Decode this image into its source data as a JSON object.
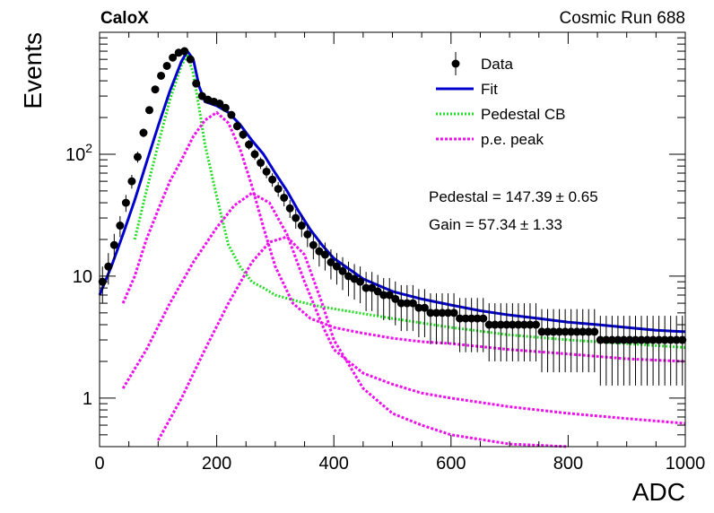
{
  "header": {
    "experiment": "CaloX",
    "run": "Cosmic Run 688"
  },
  "legend": {
    "items": [
      {
        "label": "Data",
        "kind": "marker"
      },
      {
        "label": "Fit",
        "kind": "solid"
      },
      {
        "label": "Pedestal CB",
        "kind": "dotted-green"
      },
      {
        "label": "p.e. peak",
        "kind": "dotted-magenta"
      }
    ]
  },
  "fit_results": {
    "pedestal_text": "Pedestal = 147.39",
    "pedestal_err": "± 0.65",
    "gain_text": "Gain = 57.34",
    "gain_err": "± 1.33"
  },
  "chart_data": {
    "type": "scatter",
    "xlabel": "ADC",
    "ylabel": "Events",
    "xlim": [
      0,
      1000
    ],
    "ylim": [
      0.4,
      1000
    ],
    "ylog": true,
    "grid": false,
    "legend_placement": "top-right",
    "x_ticks": [
      0,
      200,
      400,
      600,
      800,
      1000
    ],
    "x_tick_labels": [
      "0",
      "200",
      "400",
      "600",
      "800",
      "1000"
    ],
    "y_ticks": [
      1,
      10,
      100
    ],
    "y_tick_labels": [
      "1",
      "10",
      "10^2"
    ],
    "colors": {
      "data": "#000000",
      "fit": "#0000cc",
      "pedestal": "#22dd22",
      "pe": "#ee11ee"
    },
    "fit_params": {
      "pedestal": 147.39,
      "pedestal_err": 0.65,
      "gain": 57.34,
      "gain_err": 1.33
    },
    "data_points": {
      "x": [
        5,
        15,
        25,
        35,
        45,
        55,
        65,
        75,
        85,
        95,
        105,
        115,
        125,
        135,
        145,
        155,
        165,
        175,
        185,
        195,
        205,
        215,
        225,
        235,
        245,
        255,
        265,
        275,
        285,
        295,
        305,
        315,
        325,
        335,
        345,
        355,
        365,
        375,
        385,
        395,
        405,
        415,
        425,
        435,
        445,
        455,
        465,
        475,
        485,
        495,
        505,
        515,
        525,
        535,
        545,
        555,
        565,
        575,
        585,
        595,
        605,
        615,
        625,
        635,
        645,
        655,
        665,
        675,
        685,
        695,
        705,
        715,
        725,
        735,
        745,
        755,
        765,
        775,
        785,
        795,
        805,
        815,
        825,
        835,
        845,
        855,
        865,
        875,
        885,
        895,
        905,
        915,
        925,
        935,
        945,
        955,
        965,
        975,
        985,
        995
      ],
      "y": [
        9,
        12,
        18,
        26,
        40,
        60,
        95,
        150,
        230,
        340,
        440,
        530,
        620,
        680,
        700,
        600,
        380,
        300,
        280,
        270,
        260,
        240,
        210,
        170,
        145,
        120,
        100,
        85,
        72,
        62,
        52,
        44,
        36,
        30,
        26,
        22,
        18,
        16,
        15,
        13,
        12,
        11,
        10,
        9.5,
        9,
        8,
        8,
        7.5,
        7,
        7,
        6.5,
        6,
        6,
        6,
        5.5,
        5.5,
        5,
        5,
        5,
        5,
        5,
        4.5,
        4.5,
        4.5,
        4.5,
        4.5,
        4,
        4,
        4,
        4,
        4,
        4,
        4,
        4,
        4,
        3.5,
        3.5,
        3.5,
        3.5,
        3.5,
        3.5,
        3.5,
        3.5,
        3.5,
        3.5,
        3,
        3,
        3,
        3,
        3,
        3,
        3,
        3,
        3,
        3,
        3,
        3,
        3,
        3,
        3
      ]
    },
    "series": [
      {
        "name": "Fit",
        "x": [
          0,
          20,
          40,
          60,
          80,
          100,
          120,
          140,
          150,
          160,
          170,
          180,
          200,
          220,
          240,
          260,
          280,
          300,
          320,
          340,
          360,
          380,
          400,
          450,
          500,
          550,
          600,
          650,
          700,
          750,
          800,
          850,
          900,
          950,
          1000
        ],
        "y": [
          7,
          12,
          22,
          42,
          85,
          170,
          330,
          580,
          700,
          600,
          360,
          270,
          250,
          220,
          175,
          130,
          100,
          70,
          50,
          34,
          24,
          18,
          14,
          9.5,
          7.5,
          6.5,
          5.8,
          5.2,
          4.8,
          4.5,
          4.2,
          4.0,
          3.8,
          3.6,
          3.5
        ]
      },
      {
        "name": "Pedestal CB",
        "x": [
          60,
          80,
          100,
          120,
          140,
          150,
          160,
          170,
          180,
          200,
          220,
          240,
          260,
          280,
          300,
          340,
          380,
          420,
          500,
          600,
          700,
          800,
          900,
          1000
        ],
        "y": [
          20,
          50,
          120,
          280,
          540,
          640,
          460,
          240,
          120,
          45,
          18,
          12,
          9,
          8,
          7,
          6.2,
          5.6,
          5.2,
          4.5,
          3.8,
          3.3,
          3.0,
          2.8,
          2.6
        ]
      },
      {
        "name": "p.e. peak",
        "x": [
          40,
          60,
          80,
          100,
          120,
          140,
          160,
          180,
          200,
          220,
          240,
          260,
          280,
          300,
          330,
          360,
          400,
          450,
          500,
          550,
          600,
          700,
          800,
          900,
          1000
        ],
        "y": [
          6,
          10,
          20,
          35,
          60,
          90,
          140,
          190,
          220,
          180,
          110,
          55,
          25,
          12,
          6,
          4.5,
          3.8,
          3.4,
          3.1,
          2.9,
          2.8,
          2.5,
          2.3,
          2.1,
          2.0
        ]
      },
      {
        "name": "p.e. peak",
        "x": [
          40,
          80,
          120,
          160,
          200,
          230,
          260,
          290,
          320,
          350,
          380,
          400,
          450,
          500,
          550,
          600,
          700,
          800,
          900,
          1000
        ],
        "y": [
          1.2,
          2.5,
          6,
          13,
          25,
          38,
          48,
          40,
          22,
          9,
          4,
          2.5,
          1.6,
          1.3,
          1.1,
          1.0,
          0.85,
          0.75,
          0.68,
          0.62
        ]
      },
      {
        "name": "p.e. peak",
        "x": [
          100,
          140,
          180,
          220,
          260,
          290,
          320,
          350,
          380,
          400,
          450,
          500,
          550,
          600,
          700,
          800
        ],
        "y": [
          0.45,
          1.0,
          2.5,
          6,
          13,
          19,
          21,
          15,
          6,
          3,
          1.2,
          0.75,
          0.6,
          0.5,
          0.42,
          0.4
        ]
      }
    ]
  }
}
